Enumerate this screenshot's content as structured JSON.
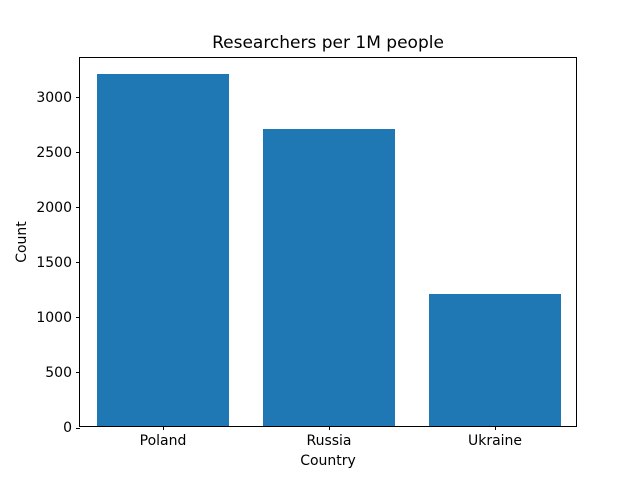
{
  "chart_data": {
    "type": "bar",
    "title": "Researchers per 1M people",
    "xlabel": "Country",
    "ylabel": "Count",
    "categories": [
      "Poland",
      "Russia",
      "Ukraine"
    ],
    "values": [
      3200,
      2700,
      1200
    ],
    "yticks": [
      0,
      500,
      1000,
      1500,
      2000,
      2500,
      3000
    ],
    "ylim": [
      0,
      3360
    ],
    "bar_color": "#1f77b4",
    "bar_width_fraction": 0.8,
    "grid": false,
    "legend": "none",
    "frame_color": "#000000",
    "background_color": "#ffffff"
  }
}
